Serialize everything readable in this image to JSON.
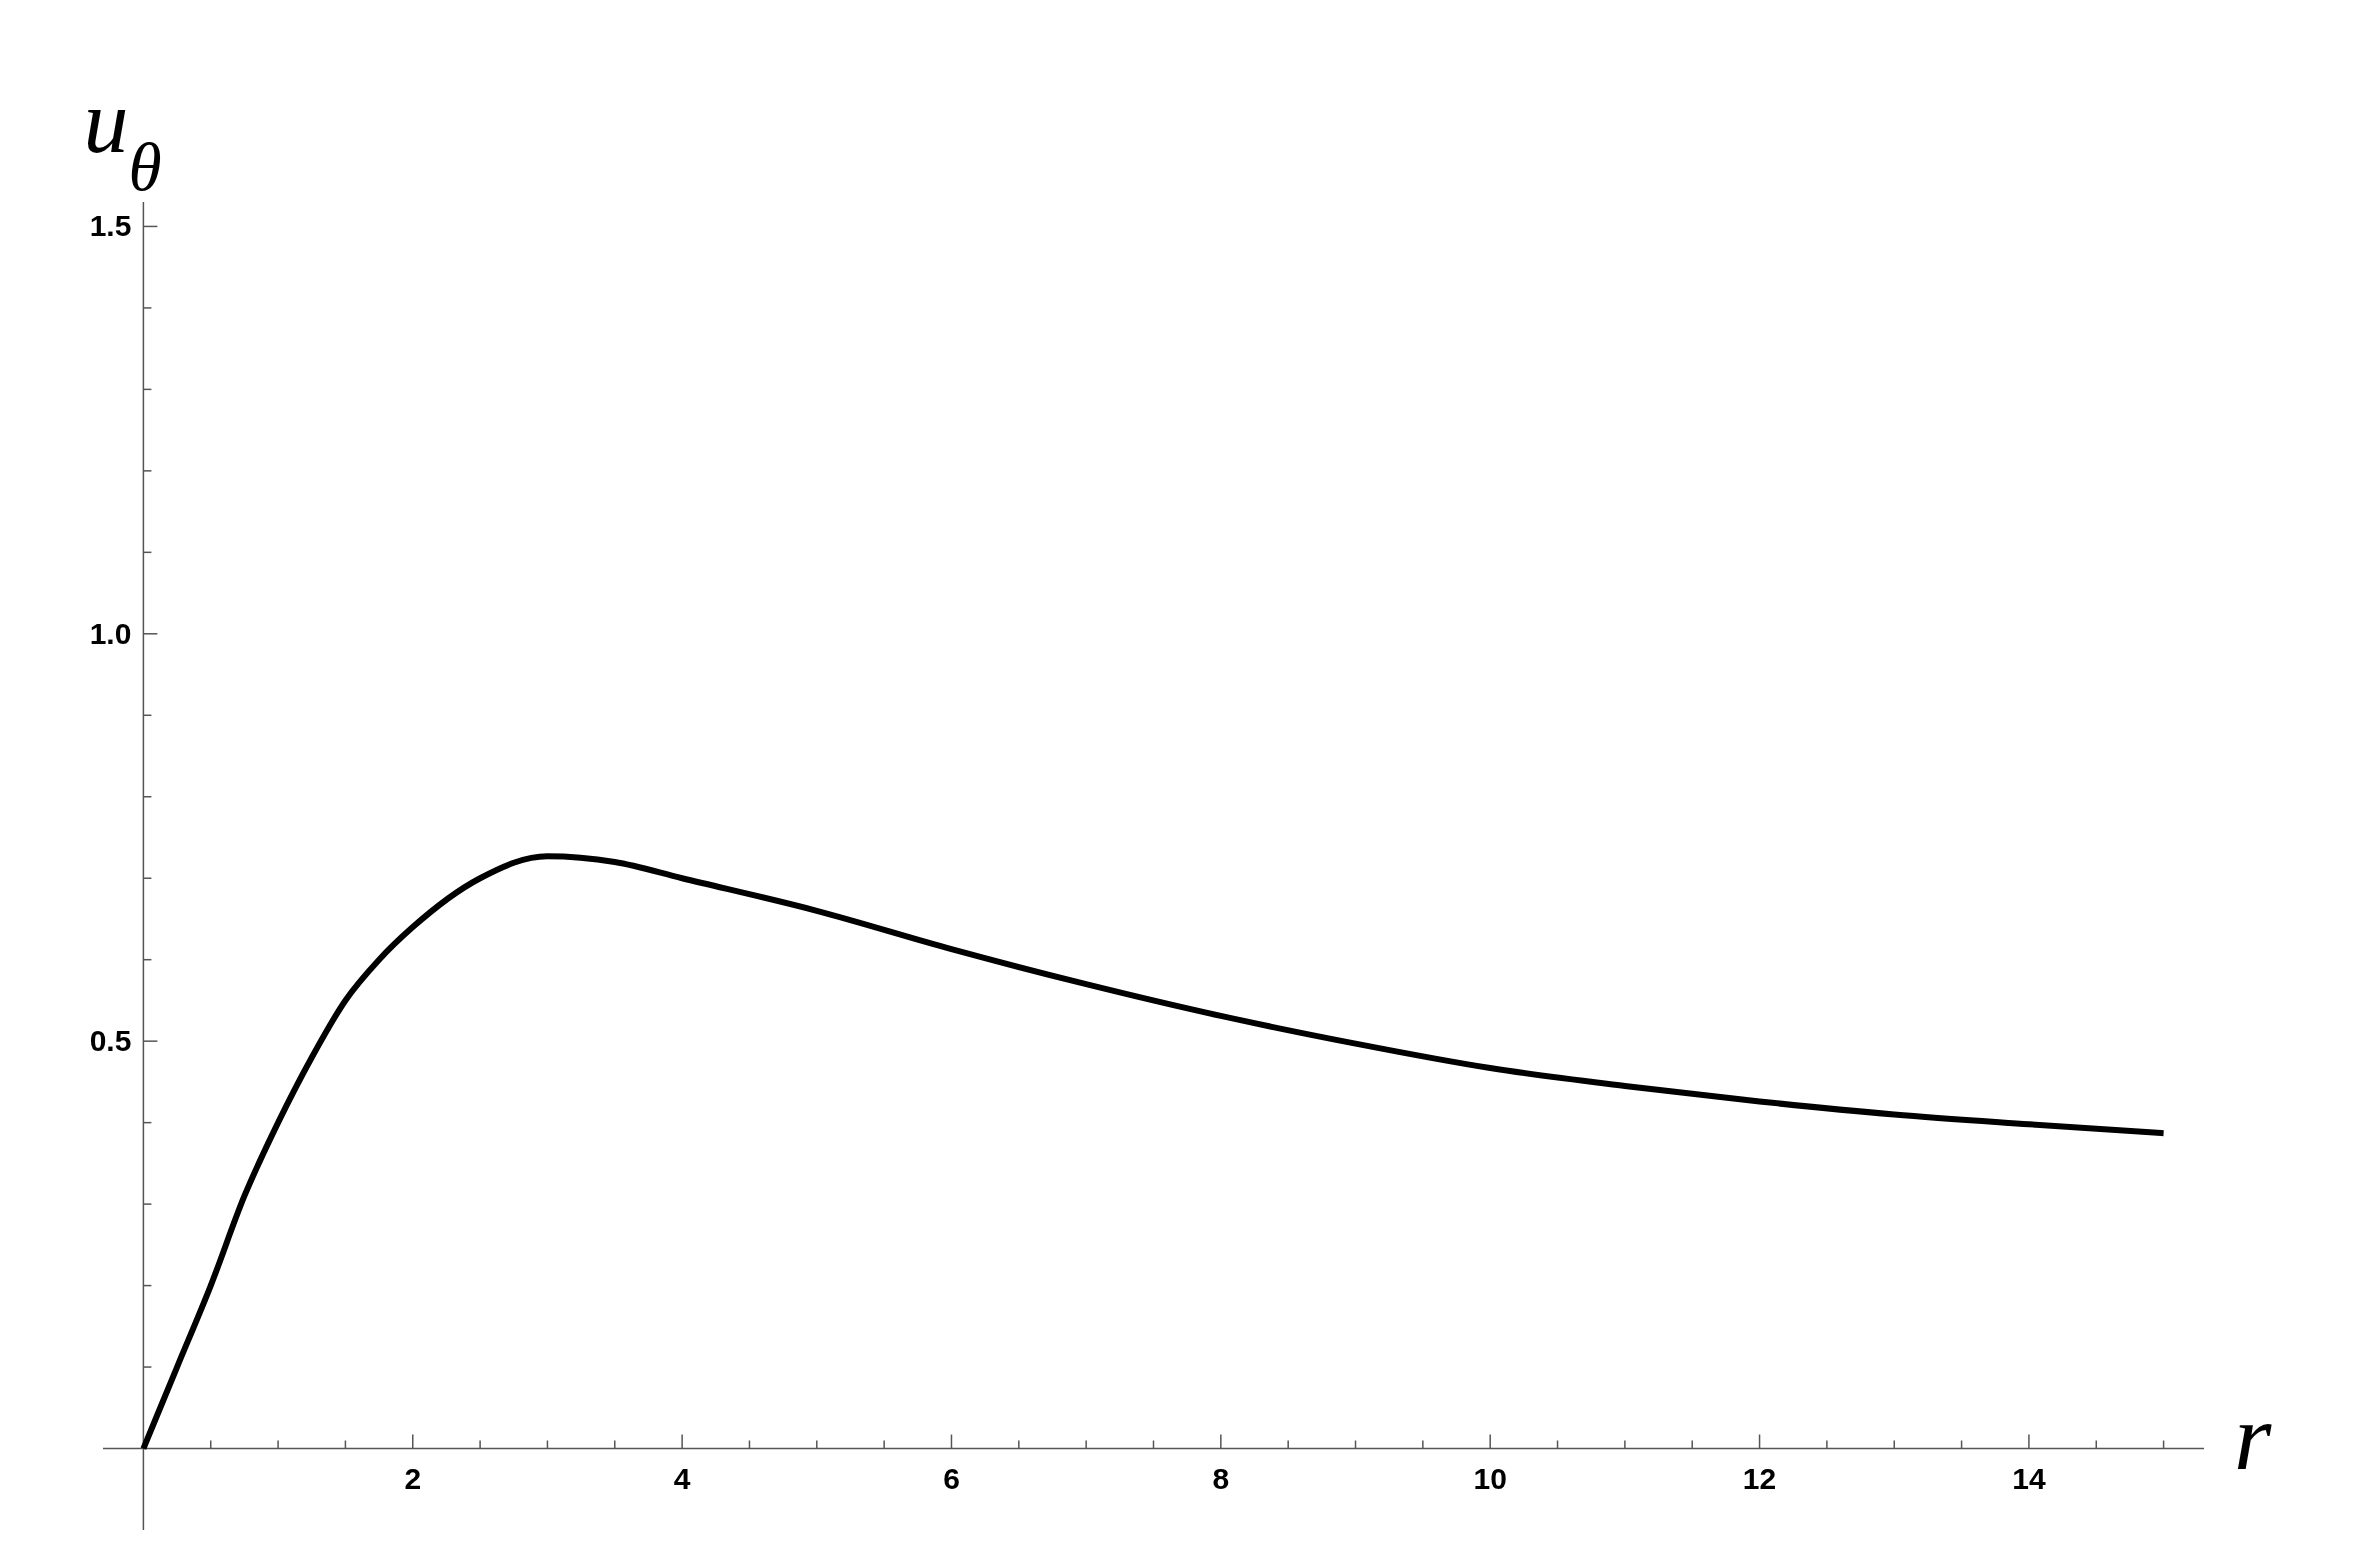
{
  "chart_data": {
    "type": "line",
    "xlabel": "r",
    "ylabel": "u$_{θ}$",
    "x": [
      0,
      0.25,
      0.5,
      0.75,
      1,
      1.25,
      1.5,
      1.75,
      2,
      2.5,
      3,
      3.5,
      4,
      5,
      6,
      7,
      8,
      9,
      10,
      11,
      12,
      13,
      14,
      15
    ],
    "series": [
      {
        "color": "#000000",
        "values": [
          0,
          0.1,
          0.2,
          0.31,
          0.4,
          0.48,
          0.55,
          0.6,
          0.64,
          0.7,
          0.727,
          0.72,
          0.7,
          0.66,
          0.613,
          0.57,
          0.531,
          0.497,
          0.467,
          0.445,
          0.426,
          0.41,
          0.398,
          0.387
        ]
      }
    ],
    "xlim": [
      -0.3,
      15.3
    ],
    "ylim": [
      -0.1,
      1.53
    ],
    "xticks": [
      {
        "value": 0.5,
        "label": null
      },
      {
        "value": 1,
        "label": null
      },
      {
        "value": 1.5,
        "label": null
      },
      2,
      {
        "value": 2.5,
        "label": null
      },
      {
        "value": 3,
        "label": null
      },
      {
        "value": 3.5,
        "label": null
      },
      4,
      {
        "value": 4.5,
        "label": null
      },
      {
        "value": 5,
        "label": null
      },
      {
        "value": 5.5,
        "label": null
      },
      6,
      {
        "value": 6.5,
        "label": null
      },
      {
        "value": 7,
        "label": null
      },
      {
        "value": 7.5,
        "label": null
      },
      8,
      {
        "value": 8.5,
        "label": null
      },
      {
        "value": 9,
        "label": null
      },
      {
        "value": 9.5,
        "label": null
      },
      10,
      {
        "value": 10.5,
        "label": null
      },
      {
        "value": 11,
        "label": null
      },
      {
        "value": 11.5,
        "label": null
      },
      12,
      {
        "value": 12.5,
        "label": null
      },
      {
        "value": 13,
        "label": null
      },
      {
        "value": 13.5,
        "label": null
      },
      14,
      {
        "value": 14.5,
        "label": null
      },
      {
        "value": 15,
        "label": null
      }
    ],
    "yticks": [
      {
        "value": 0.1,
        "label": null
      },
      {
        "value": 0.2,
        "label": null
      },
      {
        "value": 0.3,
        "label": null
      },
      {
        "value": 0.4,
        "label": null
      },
      {
        "value": 0.5,
        "label": "0.5"
      },
      {
        "value": 0.6,
        "label": null
      },
      {
        "value": 0.7,
        "label": null
      },
      {
        "value": 0.8,
        "label": null
      },
      {
        "value": 0.9,
        "label": null
      },
      {
        "value": 1,
        "label": "1.0"
      },
      {
        "value": 1.1,
        "label": null
      },
      {
        "value": 1.2,
        "label": null
      },
      {
        "value": 1.3,
        "label": null
      },
      {
        "value": 1.4,
        "label": null
      },
      {
        "value": 1.5,
        "label": "1.5"
      }
    ],
    "grid": false,
    "marker": "none",
    "line_style": "solid"
  }
}
